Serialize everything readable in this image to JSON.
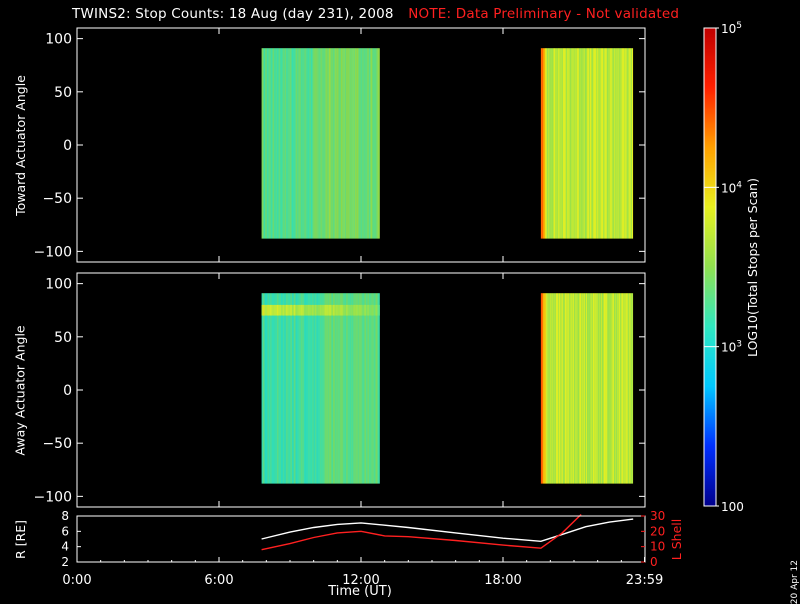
{
  "header": {
    "title": "TWINS2: Stop Counts: 18 Aug (day 231), 2008",
    "note": "NOTE: Data Preliminary - Not validated",
    "note_color": "#ff2020"
  },
  "colorbar": {
    "label": "LOG10(Total Stops per Scan)",
    "ticks": [
      "100",
      "10^3",
      "10^4",
      "10^5"
    ],
    "colormap": [
      "#00008c",
      "#0030ff",
      "#00c8ff",
      "#30e8c0",
      "#90e050",
      "#e8f020",
      "#ffa000",
      "#ff2000",
      "#c00000"
    ]
  },
  "date_stamp": "20 Apr 12",
  "chart_data": [
    {
      "type": "heatmap",
      "title": "",
      "ylabel": "Toward Actuator Angle",
      "xlabel": "",
      "xlim": [
        0,
        24
      ],
      "ylim": [
        -110,
        110
      ],
      "yticks": [
        100,
        50,
        0,
        -50,
        -100
      ],
      "data_blocks": [
        {
          "t_start": 7.8,
          "t_end": 12.8,
          "angle_range": [
            -88,
            91
          ],
          "log_counts_typical": 3.3
        },
        {
          "t_start": 19.6,
          "t_end": 23.5,
          "angle_range": [
            -88,
            91
          ],
          "log_counts_typical": 3.7
        }
      ],
      "colorbar_range": [
        2,
        5
      ]
    },
    {
      "type": "heatmap",
      "title": "",
      "ylabel": "Away Actuator Angle",
      "xlabel": "",
      "xlim": [
        0,
        24
      ],
      "ylim": [
        -110,
        110
      ],
      "yticks": [
        100,
        50,
        0,
        -50,
        -100
      ],
      "data_blocks": [
        {
          "t_start": 7.8,
          "t_end": 12.8,
          "angle_range": [
            -88,
            91
          ],
          "log_counts_typical": 3.2
        },
        {
          "t_start": 19.6,
          "t_end": 23.5,
          "angle_range": [
            -88,
            91
          ],
          "log_counts_typical": 3.7
        }
      ],
      "colorbar_range": [
        2,
        5
      ]
    },
    {
      "type": "line",
      "ylabel_left": "R [RE]",
      "ylabel_right": "L Shell",
      "xlabel": "Time (UT)",
      "xlim": [
        0,
        24
      ],
      "xticks": [
        "0:00",
        "6:00",
        "12:00",
        "18:00",
        "23:59"
      ],
      "xtick_values": [
        0,
        6,
        12,
        18,
        23.98
      ],
      "ylim_left": [
        2,
        8
      ],
      "yticks_left": [
        2,
        4,
        6,
        8
      ],
      "ylim_right": [
        0,
        30
      ],
      "yticks_right": [
        0,
        10,
        20,
        30
      ],
      "series": [
        {
          "name": "R",
          "color": "#ffffff",
          "axis": "left",
          "x": [
            7.8,
            9,
            10,
            11,
            12,
            13,
            14,
            16,
            18,
            19.6,
            20.5,
            21.5,
            22.5,
            23.5
          ],
          "y": [
            5.0,
            5.9,
            6.5,
            6.9,
            7.1,
            6.8,
            6.5,
            5.8,
            5.1,
            4.7,
            5.6,
            6.6,
            7.2,
            7.6
          ]
        },
        {
          "name": "L Shell",
          "color": "#ff2020",
          "axis": "right",
          "x": [
            7.8,
            9,
            10,
            11,
            12,
            13,
            14,
            16,
            18,
            19.6,
            20.5,
            21.3
          ],
          "y": [
            8,
            12,
            16,
            19,
            20,
            17,
            16.5,
            14,
            11,
            9,
            19,
            31
          ]
        }
      ]
    }
  ]
}
